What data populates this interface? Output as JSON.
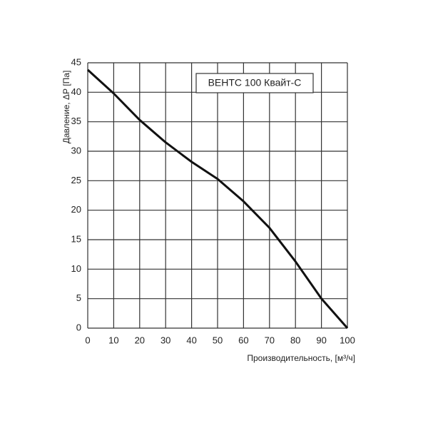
{
  "chart_data": {
    "type": "line",
    "x_label": "Производительность, [м³/ч]",
    "y_label": "Давление, ΔР [Па]",
    "x": [
      0,
      10,
      20,
      30,
      40,
      50,
      60,
      70,
      80,
      90,
      100
    ],
    "series": [
      {
        "name": "ВЕНТС 100 Квайт-С",
        "color": "#111111",
        "values": [
          43.8,
          39.8,
          35.3,
          31.5,
          28.2,
          25.3,
          21.5,
          17,
          11.3,
          5,
          0
        ]
      }
    ],
    "xlim": [
      0,
      100
    ],
    "xticks": [
      0,
      10,
      20,
      30,
      40,
      50,
      60,
      70,
      80,
      90,
      100
    ],
    "ylim": [
      0,
      45
    ],
    "yticks": [
      0,
      5,
      10,
      15,
      20,
      25,
      30,
      35,
      40,
      45
    ],
    "grid": true
  }
}
